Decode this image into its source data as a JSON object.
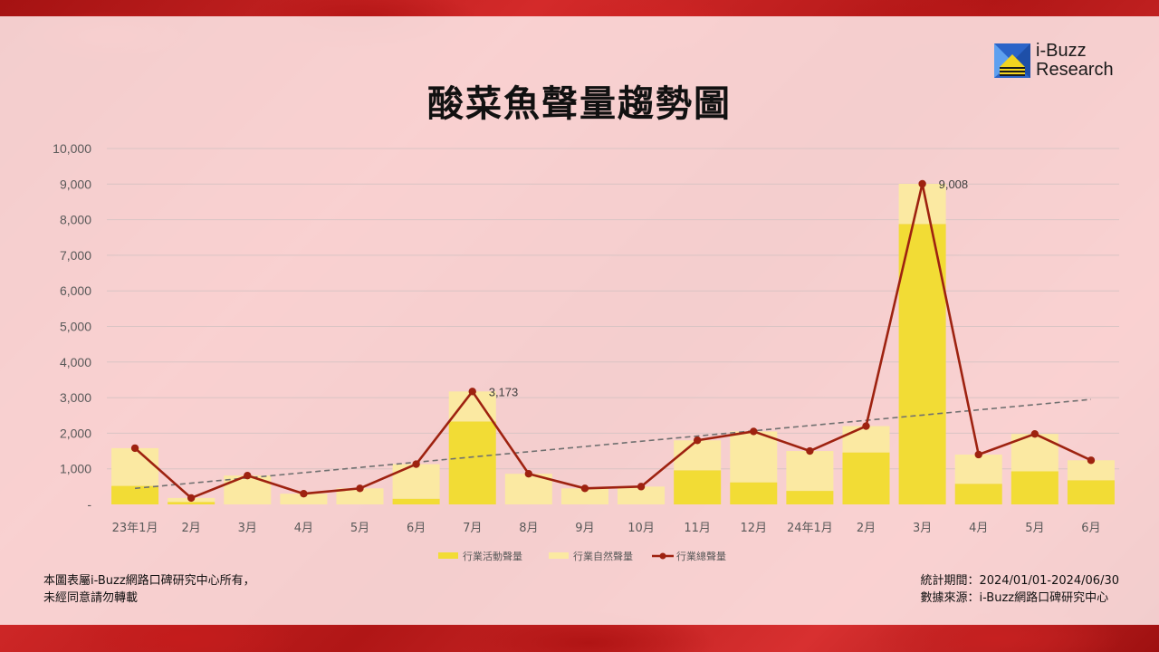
{
  "logo": {
    "line1": "i-Buzz",
    "line2": "Research"
  },
  "chart_data": {
    "type": "bar",
    "title": "酸菜魚聲量趨勢圖",
    "categories": [
      "23年1月",
      "2月",
      "3月",
      "4月",
      "5月",
      "6月",
      "7月",
      "8月",
      "9月",
      "10月",
      "11月",
      "12月",
      "24年1月",
      "2月",
      "3月",
      "4月",
      "5月",
      "6月"
    ],
    "y_ticks": [
      "-",
      "1,000",
      "2,000",
      "3,000",
      "4,000",
      "5,000",
      "6,000",
      "7,000",
      "8,000",
      "9,000",
      "10,000"
    ],
    "ylim": [
      0,
      10000
    ],
    "grid": true,
    "legend_position": "bottom",
    "stacked": true,
    "series": [
      {
        "name": "行業活動聲量",
        "type": "bar",
        "color": "#f2dc35",
        "values": [
          520,
          70,
          0,
          0,
          0,
          160,
          2330,
          0,
          0,
          0,
          960,
          620,
          380,
          1460,
          7880,
          580,
          930,
          680
        ]
      },
      {
        "name": "行業自然聲量",
        "type": "bar",
        "color": "#fbe9a2",
        "values": [
          1060,
          110,
          810,
          300,
          450,
          970,
          843,
          860,
          450,
          500,
          840,
          1430,
          1120,
          740,
          1128,
          820,
          1050,
          560
        ]
      },
      {
        "name": "行業總聲量",
        "type": "line",
        "color": "#9e2210",
        "values": [
          1580,
          180,
          810,
          300,
          450,
          1130,
          3173,
          860,
          450,
          500,
          1800,
          2050,
          1500,
          2200,
          9008,
          1400,
          1980,
          1240
        ]
      }
    ],
    "trendline": {
      "color": "#707070",
      "style": "dashed",
      "start": 450,
      "end": 2950
    },
    "annotations": [
      {
        "category_index": 6,
        "text": "3,173"
      },
      {
        "category_index": 14,
        "text": "9,008"
      }
    ]
  },
  "footer": {
    "copyright_line1": "本圖表屬i-Buzz網路口碑研究中心所有，",
    "copyright_line2": "未經同意請勿轉載",
    "period": "統計期間：2024/01/01-2024/06/30",
    "source": "數據來源：i-Buzz網路口碑研究中心"
  }
}
